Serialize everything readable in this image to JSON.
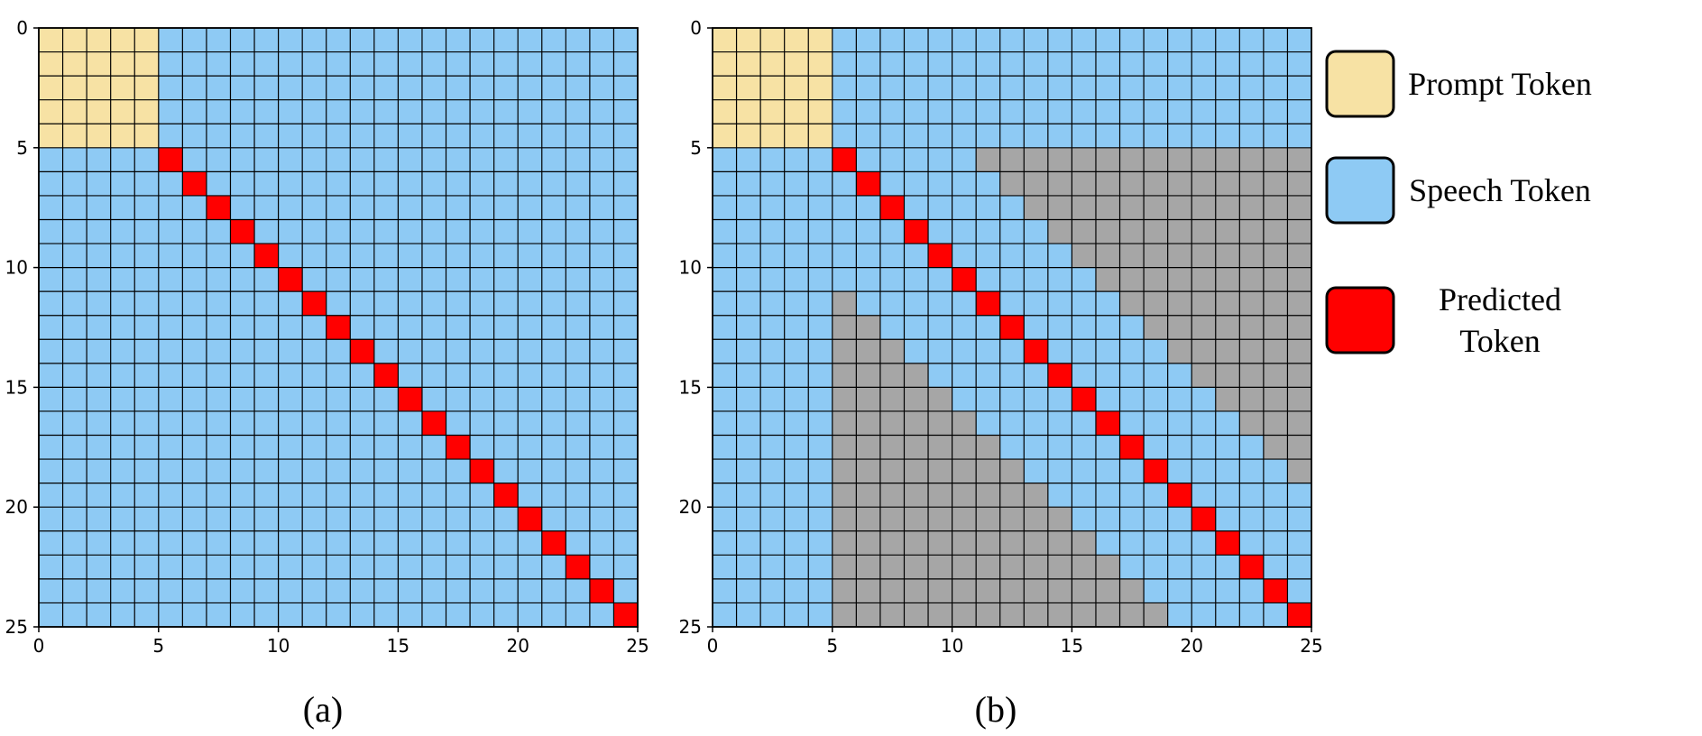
{
  "chart_data": [
    {
      "type": "heatmap",
      "caption": "(a)",
      "grid_size": 25,
      "prompt_length": 5,
      "masked_band": null,
      "x_ticks": [
        "0",
        "5",
        "10",
        "15",
        "20",
        "25"
      ],
      "y_ticks": [
        "0",
        "5",
        "10",
        "15",
        "20",
        "25"
      ]
    },
    {
      "type": "heatmap",
      "caption": "(b)",
      "grid_size": 25,
      "prompt_length": 5,
      "masked_band": {
        "above_diagonal_from_offset": 6,
        "below_diagonal_from_offset": 6,
        "applies_from_index": 5
      },
      "x_ticks": [
        "0",
        "5",
        "10",
        "15",
        "20",
        "25"
      ],
      "y_ticks": [
        "0",
        "5",
        "10",
        "15",
        "20",
        "25"
      ]
    }
  ],
  "colors": {
    "prompt": "#F7E2A4",
    "speech": "#8ECAF4",
    "predicted": "#FF0000",
    "masked": "#A6A6A6",
    "grid": "#000000"
  },
  "legend": [
    {
      "label_lines": [
        "Prompt Token"
      ],
      "color_key": "prompt"
    },
    {
      "label_lines": [
        "Speech Token"
      ],
      "color_key": "speech"
    },
    {
      "label_lines": [
        "Predicted",
        "Token"
      ],
      "color_key": "predicted"
    }
  ]
}
